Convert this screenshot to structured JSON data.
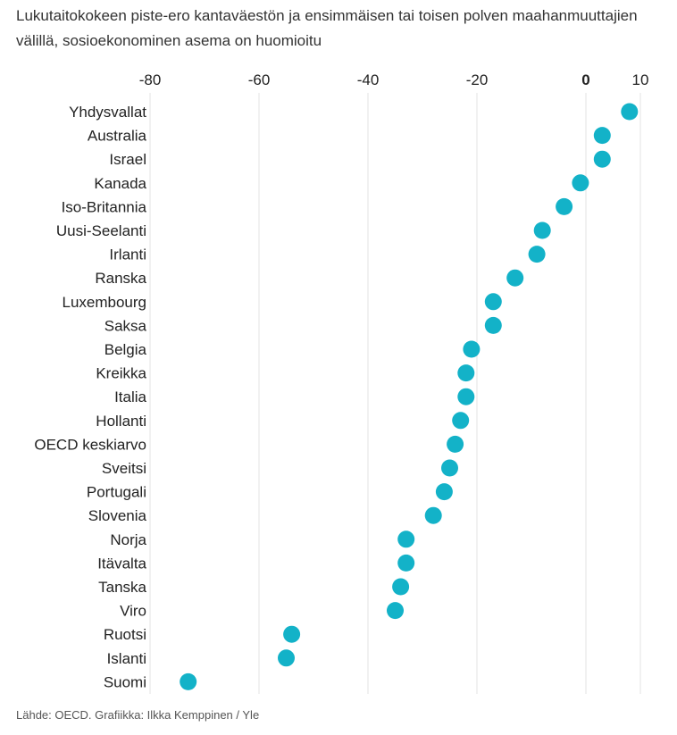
{
  "title": "Lukutaitokokeen piste-ero kantaväestön ja ensimmäisen tai toisen polven maahanmuuttajien välillä, sosioekonominen asema on huomioitu",
  "source": "Lähde: OECD. Grafiikka: Ilkka Kemppinen / Yle",
  "colors": {
    "dot": "#13b2c8",
    "grid": "#e3e3e3",
    "text": "#222222"
  },
  "chart_data": {
    "type": "scatter",
    "orientation": "horizontal-dot",
    "title": "Lukutaitokokeen piste-ero kantaväestön ja ensimmäisen tai toisen polven maahanmuuttajien välillä, sosioekonominen asema on huomioitu",
    "xlabel": "",
    "ylabel": "",
    "xlim": [
      -80,
      10
    ],
    "xticks": [
      -80,
      -60,
      -40,
      -20,
      0,
      10
    ],
    "xtick_labels": [
      "-80",
      "-60",
      "-40",
      "-20",
      "0",
      "10"
    ],
    "emphasized_tick": "0",
    "grid": true,
    "categories": [
      "Yhdysvallat",
      "Australia",
      "Israel",
      "Kanada",
      "Iso-Britannia",
      "Uusi-Seelanti",
      "Irlanti",
      "Ranska",
      "Luxembourg",
      "Saksa",
      "Belgia",
      "Kreikka",
      "Italia",
      "Hollanti",
      "OECD keskiarvo",
      "Sveitsi",
      "Portugali",
      "Slovenia",
      "Norja",
      "Itävalta",
      "Tanska",
      "Viro",
      "Ruotsi",
      "Islanti",
      "Suomi"
    ],
    "values": [
      8,
      3,
      3,
      -1,
      -4,
      -8,
      -9,
      -13,
      -17,
      -17,
      -21,
      -22,
      -22,
      -23,
      -24,
      -25,
      -26,
      -28,
      -33,
      -33,
      -34,
      -35,
      -54,
      -55,
      -73
    ]
  }
}
